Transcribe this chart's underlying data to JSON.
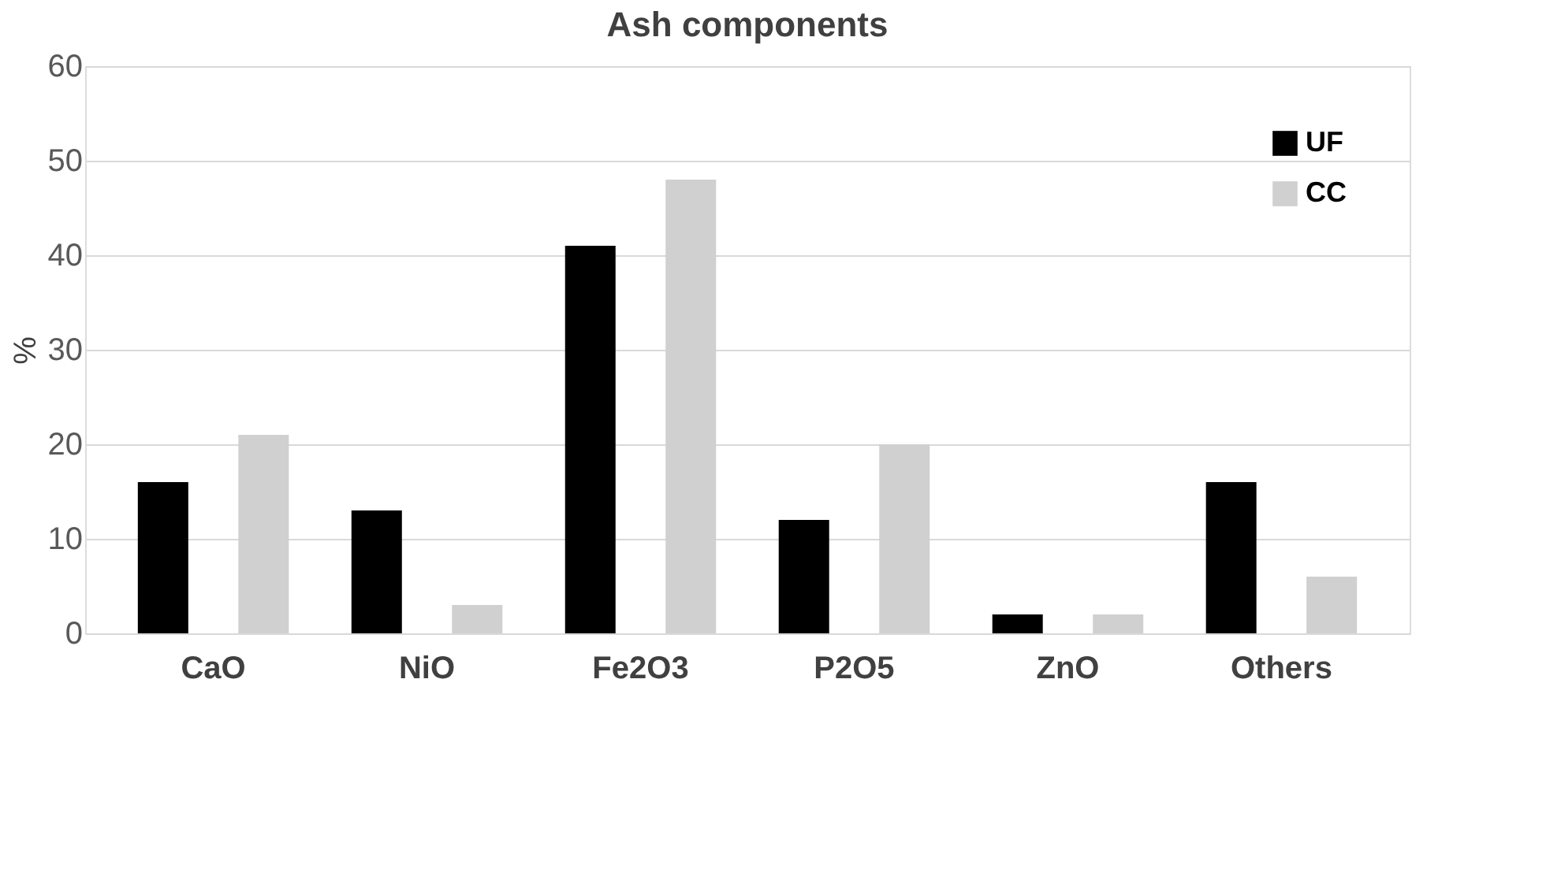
{
  "chart_data": {
    "type": "bar",
    "title": "Ash components",
    "ylabel": "%",
    "categories": [
      "CaO",
      "NiO",
      "Fe2O3",
      "P2O5",
      "ZnO",
      "Others"
    ],
    "series": [
      {
        "name": "UF",
        "color": "#000000",
        "values": [
          16,
          13,
          41,
          12,
          2,
          16
        ]
      },
      {
        "name": "CC",
        "color": "#d0d0d0",
        "values": [
          21,
          3,
          48,
          20,
          2,
          6
        ]
      }
    ],
    "ylim": [
      0,
      60
    ],
    "yticks": [
      0,
      10,
      20,
      30,
      40,
      50,
      60
    ],
    "grid": "y",
    "legend": "top right"
  }
}
